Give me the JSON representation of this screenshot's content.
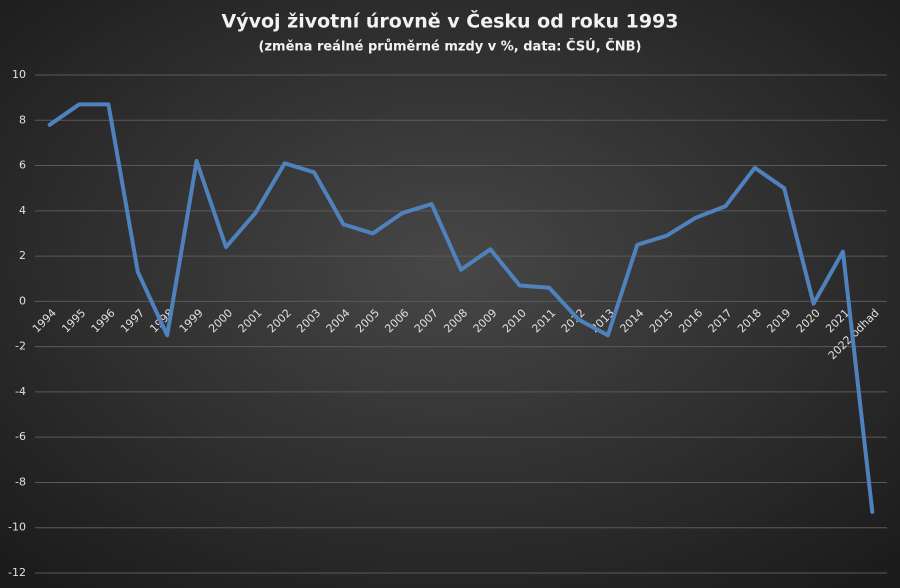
{
  "chart_data": {
    "type": "line",
    "title": "Vývoj životní úrovně v Česku od roku 1993",
    "subtitle": "(změna reálné průměrné mzdy v %, data: ČSÚ, ČNB)",
    "categories": [
      "1994",
      "1995",
      "1996",
      "1997",
      "1998",
      "1999",
      "2000",
      "2001",
      "2002",
      "2003",
      "2004",
      "2005",
      "2006",
      "2007",
      "2008",
      "2009",
      "2010",
      "2011",
      "2012",
      "2013",
      "2014",
      "2015",
      "2016",
      "2017",
      "2018",
      "2019",
      "2020",
      "2021",
      "2022 odhad"
    ],
    "series": [
      {
        "name": "Změna reálné průměrné mzdy",
        "color": "#4f81bd",
        "values": [
          7.8,
          8.7,
          8.7,
          1.3,
          -1.5,
          6.2,
          2.4,
          3.9,
          6.1,
          5.7,
          3.4,
          3.0,
          3.9,
          4.3,
          1.4,
          2.3,
          0.7,
          0.6,
          -0.8,
          -1.5,
          2.5,
          2.9,
          3.7,
          4.2,
          5.9,
          5.0,
          -0.1,
          2.2,
          -9.3
        ]
      }
    ],
    "ylim": [
      -12,
      10
    ],
    "yticks": [
      -12,
      -10,
      -8,
      -6,
      -4,
      -2,
      0,
      2,
      4,
      6,
      8,
      10
    ],
    "grid": true
  }
}
